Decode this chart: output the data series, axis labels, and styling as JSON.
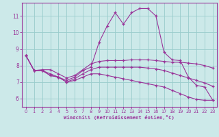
{
  "xlabel": "Windchill (Refroidissement éolien,°C)",
  "xlim": [
    -0.5,
    23.5
  ],
  "ylim": [
    5.5,
    11.8
  ],
  "xticks": [
    0,
    1,
    2,
    3,
    4,
    5,
    6,
    7,
    8,
    9,
    10,
    11,
    12,
    13,
    14,
    15,
    16,
    17,
    18,
    19,
    20,
    21,
    22,
    23
  ],
  "yticks": [
    6,
    7,
    8,
    9,
    10,
    11
  ],
  "bg_color": "#cce9e9",
  "line_color": "#993399",
  "grid_color": "#99cccc",
  "line1_y": [
    8.6,
    7.7,
    7.7,
    7.5,
    7.3,
    7.1,
    7.3,
    7.7,
    7.9,
    9.4,
    10.4,
    11.2,
    10.5,
    11.2,
    11.45,
    11.45,
    11.0,
    8.8,
    8.35,
    8.3,
    7.3,
    6.8,
    6.7,
    5.9
  ],
  "line2_y": [
    8.6,
    7.7,
    7.75,
    7.75,
    7.5,
    7.25,
    7.4,
    7.75,
    8.1,
    8.25,
    8.3,
    8.3,
    8.3,
    8.35,
    8.35,
    8.35,
    8.3,
    8.25,
    8.2,
    8.2,
    8.15,
    8.1,
    8.0,
    7.85
  ],
  "line3_y": [
    8.6,
    7.7,
    7.7,
    7.4,
    7.3,
    7.0,
    7.2,
    7.5,
    7.75,
    7.9,
    7.9,
    7.9,
    7.9,
    7.9,
    7.9,
    7.85,
    7.8,
    7.7,
    7.55,
    7.4,
    7.25,
    7.1,
    6.95,
    6.75
  ],
  "line4_y": [
    8.6,
    7.7,
    7.7,
    7.4,
    7.3,
    7.0,
    7.1,
    7.3,
    7.5,
    7.5,
    7.4,
    7.3,
    7.2,
    7.1,
    7.0,
    6.9,
    6.8,
    6.7,
    6.5,
    6.3,
    6.1,
    5.95,
    5.9,
    5.9
  ]
}
